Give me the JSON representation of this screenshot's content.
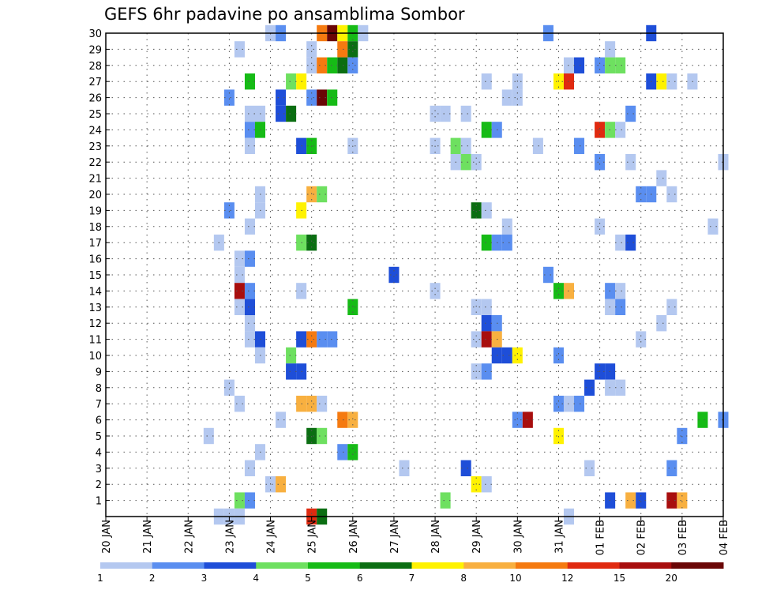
{
  "colors": {
    "levels": [
      "#b4c8f0",
      "#5a8ef0",
      "#1e4ed8",
      "#6ee060",
      "#16bb16",
      "#0b6e12",
      "#fff200",
      "#f8b040",
      "#f57a10",
      "#e02a10",
      "#a80e0e",
      "#6a0606"
    ],
    "grid": "#555555"
  },
  "chart_data": {
    "type": "heatmap",
    "title": "GEFS 6hr padavine po ansamblima Sombor",
    "xlabel": "",
    "ylabel": "",
    "y_tick_labels": [
      "1",
      "2",
      "3",
      "4",
      "5",
      "6",
      "7",
      "8",
      "9",
      "10",
      "11",
      "12",
      "13",
      "14",
      "15",
      "16",
      "17",
      "18",
      "19",
      "20",
      "21",
      "22",
      "23",
      "24",
      "25",
      "26",
      "27",
      "28",
      "29",
      "30"
    ],
    "x_tick_labels": [
      "20 JAN",
      "21 JAN",
      "22 JAN",
      "23 JAN",
      "24 JAN",
      "25 JAN",
      "26 JAN",
      "27 JAN",
      "28 JAN",
      "29 JAN",
      "30 JAN",
      "31 JAN",
      "01 FEB",
      "02 FEB",
      "03 FEB",
      "04 FEB"
    ],
    "x_unit": "6-hour step from 20 JAN 00z",
    "x_range": [
      0,
      60
    ],
    "y_range": [
      0,
      30
    ],
    "grid": true,
    "colorbar_labels": [
      "1",
      "2",
      "3",
      "4",
      "5",
      "6",
      "7",
      "8",
      "10",
      "12",
      "15",
      "20"
    ],
    "colorbar_class_bounds": [
      1,
      2,
      3,
      4,
      5,
      6,
      7,
      8,
      10,
      12,
      15,
      20
    ],
    "cells": [
      [
        16,
        30,
        1
      ],
      [
        17,
        30,
        2
      ],
      [
        21,
        30,
        9
      ],
      [
        22,
        30,
        12
      ],
      [
        23,
        30,
        7
      ],
      [
        24,
        30,
        5
      ],
      [
        25,
        30,
        1
      ],
      [
        43,
        30,
        2
      ],
      [
        53,
        30,
        3
      ],
      [
        13,
        29,
        1
      ],
      [
        20,
        29,
        1
      ],
      [
        23,
        29,
        9
      ],
      [
        24,
        29,
        6
      ],
      [
        49,
        29,
        1
      ],
      [
        20,
        28,
        1
      ],
      [
        21,
        28,
        9
      ],
      [
        22,
        28,
        5
      ],
      [
        23,
        28,
        6
      ],
      [
        24,
        28,
        2
      ],
      [
        45,
        28,
        1
      ],
      [
        46,
        28,
        3
      ],
      [
        48,
        28,
        2
      ],
      [
        49,
        28,
        4
      ],
      [
        50,
        28,
        4
      ],
      [
        14,
        27,
        5
      ],
      [
        18,
        27,
        4
      ],
      [
        19,
        27,
        7
      ],
      [
        37,
        27,
        1
      ],
      [
        40,
        27,
        1
      ],
      [
        44,
        27,
        7
      ],
      [
        45,
        27,
        10
      ],
      [
        53,
        27,
        3
      ],
      [
        54,
        27,
        7
      ],
      [
        55,
        27,
        1
      ],
      [
        57,
        27,
        1
      ],
      [
        12,
        26,
        2
      ],
      [
        17,
        26,
        3
      ],
      [
        20,
        26,
        2
      ],
      [
        21,
        26,
        12
      ],
      [
        22,
        26,
        5
      ],
      [
        39,
        26,
        1
      ],
      [
        40,
        26,
        1
      ],
      [
        14,
        25,
        1
      ],
      [
        15,
        25,
        1
      ],
      [
        17,
        25,
        3
      ],
      [
        18,
        25,
        6
      ],
      [
        32,
        25,
        1
      ],
      [
        33,
        25,
        1
      ],
      [
        35,
        25,
        1
      ],
      [
        51,
        25,
        2
      ],
      [
        14,
        24,
        2
      ],
      [
        15,
        24,
        5
      ],
      [
        37,
        24,
        5
      ],
      [
        38,
        24,
        2
      ],
      [
        48,
        24,
        10
      ],
      [
        49,
        24,
        4
      ],
      [
        50,
        24,
        1
      ],
      [
        14,
        23,
        1
      ],
      [
        19,
        23,
        3
      ],
      [
        20,
        23,
        5
      ],
      [
        24,
        23,
        1
      ],
      [
        32,
        23,
        1
      ],
      [
        34,
        23,
        4
      ],
      [
        35,
        23,
        1
      ],
      [
        42,
        23,
        1
      ],
      [
        46,
        23,
        2
      ],
      [
        34,
        22,
        1
      ],
      [
        35,
        22,
        4
      ],
      [
        36,
        22,
        1
      ],
      [
        48,
        22,
        2
      ],
      [
        51,
        22,
        1
      ],
      [
        60,
        22,
        1
      ],
      [
        54,
        21,
        1
      ],
      [
        15,
        20,
        1
      ],
      [
        20,
        20,
        8
      ],
      [
        21,
        20,
        4
      ],
      [
        52,
        20,
        2
      ],
      [
        53,
        20,
        2
      ],
      [
        55,
        20,
        1
      ],
      [
        12,
        19,
        2
      ],
      [
        15,
        19,
        1
      ],
      [
        19,
        19,
        7
      ],
      [
        36,
        19,
        6
      ],
      [
        37,
        19,
        1
      ],
      [
        14,
        18,
        1
      ],
      [
        39,
        18,
        1
      ],
      [
        48,
        18,
        1
      ],
      [
        59,
        18,
        1
      ],
      [
        11,
        17,
        1
      ],
      [
        19,
        17,
        4
      ],
      [
        20,
        17,
        6
      ],
      [
        37,
        17,
        5
      ],
      [
        38,
        17,
        2
      ],
      [
        39,
        17,
        2
      ],
      [
        50,
        17,
        1
      ],
      [
        51,
        17,
        3
      ],
      [
        13,
        16,
        1
      ],
      [
        14,
        16,
        2
      ],
      [
        28,
        15,
        3
      ],
      [
        13,
        15,
        1
      ],
      [
        43,
        15,
        2
      ],
      [
        13,
        14,
        11
      ],
      [
        14,
        14,
        2
      ],
      [
        19,
        14,
        1
      ],
      [
        32,
        14,
        1
      ],
      [
        44,
        14,
        5
      ],
      [
        45,
        14,
        8
      ],
      [
        49,
        14,
        2
      ],
      [
        50,
        14,
        1
      ],
      [
        13,
        13,
        1
      ],
      [
        14,
        13,
        3
      ],
      [
        24,
        13,
        5
      ],
      [
        36,
        13,
        1
      ],
      [
        37,
        13,
        1
      ],
      [
        49,
        13,
        1
      ],
      [
        50,
        13,
        2
      ],
      [
        55,
        13,
        1
      ],
      [
        14,
        12,
        1
      ],
      [
        37,
        12,
        3
      ],
      [
        38,
        12,
        2
      ],
      [
        54,
        12,
        1
      ],
      [
        14,
        11,
        1
      ],
      [
        15,
        11,
        3
      ],
      [
        19,
        11,
        3
      ],
      [
        20,
        11,
        9
      ],
      [
        21,
        11,
        2
      ],
      [
        22,
        11,
        2
      ],
      [
        36,
        11,
        1
      ],
      [
        37,
        11,
        11
      ],
      [
        38,
        11,
        8
      ],
      [
        52,
        11,
        1
      ],
      [
        15,
        10,
        1
      ],
      [
        18,
        10,
        4
      ],
      [
        38,
        10,
        3
      ],
      [
        39,
        10,
        3
      ],
      [
        40,
        10,
        7
      ],
      [
        44,
        10,
        2
      ],
      [
        18,
        9,
        3
      ],
      [
        19,
        9,
        3
      ],
      [
        36,
        9,
        1
      ],
      [
        37,
        9,
        2
      ],
      [
        48,
        9,
        3
      ],
      [
        49,
        9,
        3
      ],
      [
        12,
        8,
        1
      ],
      [
        47,
        8,
        3
      ],
      [
        49,
        8,
        1
      ],
      [
        50,
        8,
        1
      ],
      [
        13,
        7,
        1
      ],
      [
        19,
        7,
        8
      ],
      [
        20,
        7,
        8
      ],
      [
        21,
        7,
        1
      ],
      [
        44,
        7,
        2
      ],
      [
        45,
        7,
        1
      ],
      [
        46,
        7,
        2
      ],
      [
        17,
        6,
        1
      ],
      [
        23,
        6,
        9
      ],
      [
        24,
        6,
        8
      ],
      [
        40,
        6,
        2
      ],
      [
        41,
        6,
        11
      ],
      [
        58,
        6,
        5
      ],
      [
        60,
        6,
        2
      ],
      [
        10,
        5,
        1
      ],
      [
        20,
        5,
        6
      ],
      [
        21,
        5,
        4
      ],
      [
        44,
        5,
        7
      ],
      [
        56,
        5,
        2
      ],
      [
        15,
        4,
        1
      ],
      [
        23,
        4,
        2
      ],
      [
        24,
        4,
        5
      ],
      [
        14,
        3,
        1
      ],
      [
        29,
        3,
        1
      ],
      [
        35,
        3,
        3
      ],
      [
        47,
        3,
        1
      ],
      [
        55,
        3,
        2
      ],
      [
        16,
        2,
        1
      ],
      [
        17,
        2,
        8
      ],
      [
        36,
        2,
        7
      ],
      [
        37,
        2,
        1
      ],
      [
        13,
        1,
        4
      ],
      [
        14,
        1,
        2
      ],
      [
        33,
        1,
        4
      ],
      [
        49,
        1,
        3
      ],
      [
        51,
        1,
        8
      ],
      [
        52,
        1,
        3
      ],
      [
        55,
        1,
        11
      ],
      [
        56,
        1,
        8
      ],
      [
        11,
        0,
        1
      ],
      [
        12,
        0,
        1
      ],
      [
        13,
        0,
        1
      ],
      [
        20,
        0,
        10
      ],
      [
        21,
        0,
        6
      ],
      [
        45,
        0,
        1
      ]
    ]
  }
}
